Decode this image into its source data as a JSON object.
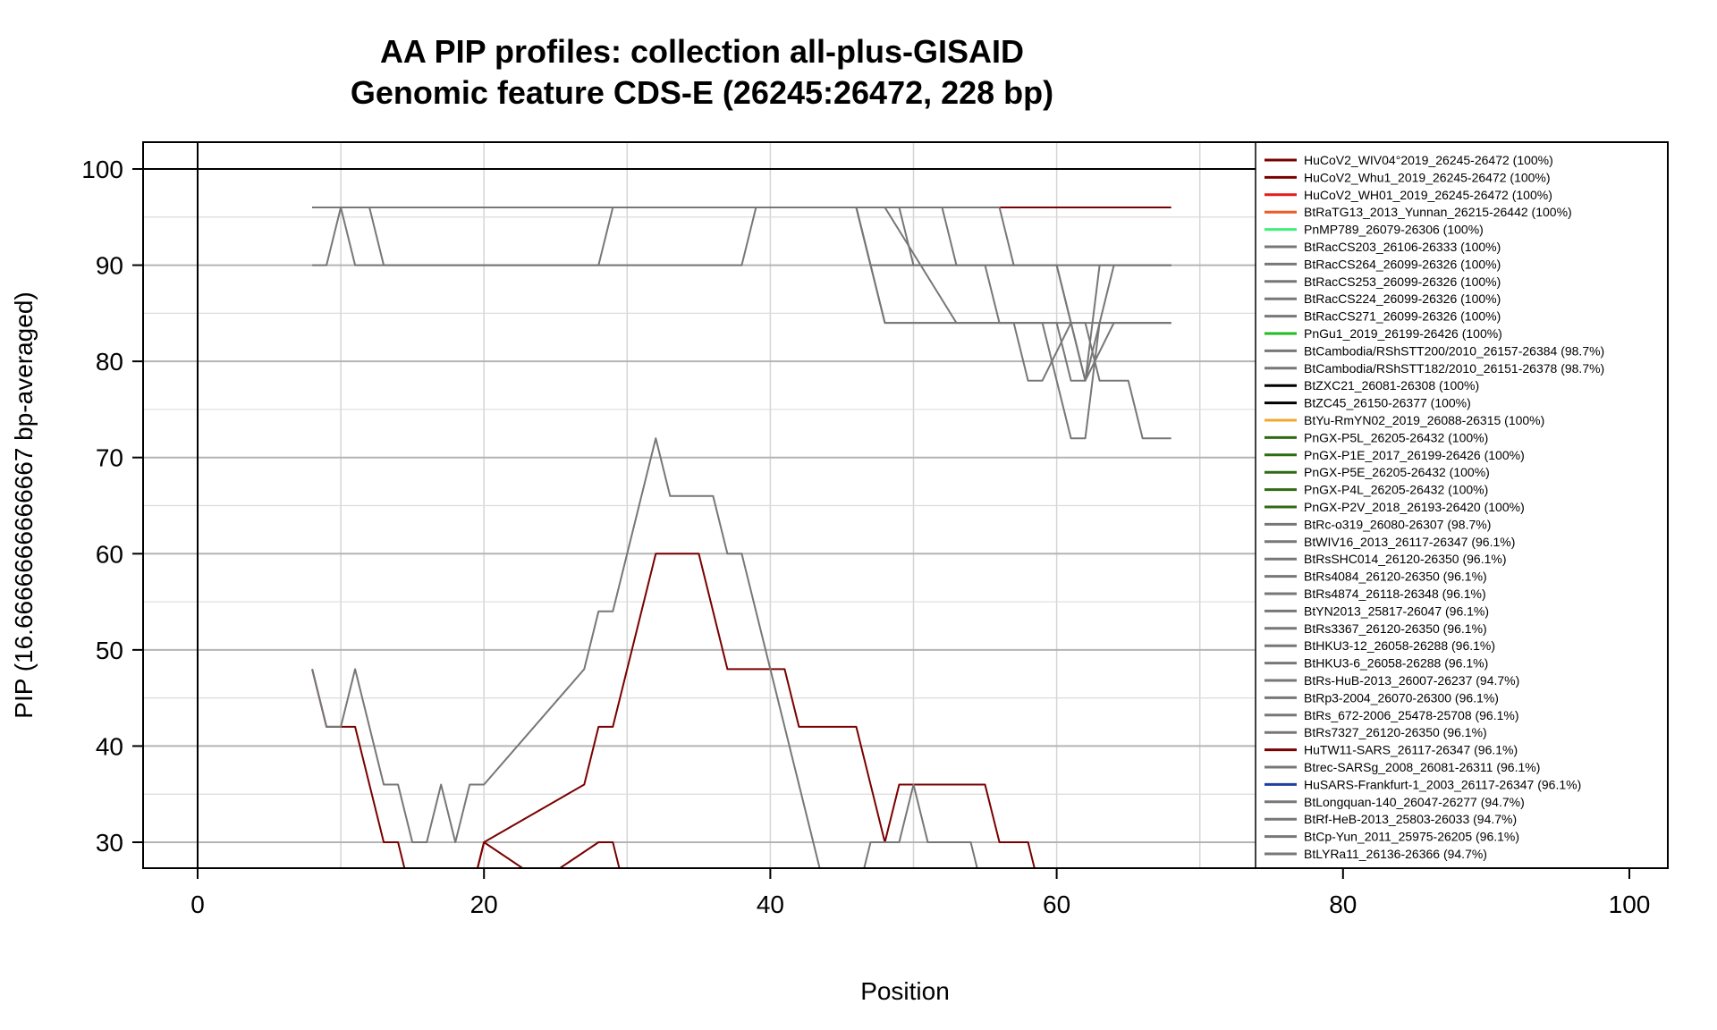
{
  "chart_data": {
    "type": "line",
    "title": "AA PIP profiles: collection all-plus-GISAID",
    "subtitle": "Genomic feature CDS-E (26245:26472, 228 bp)",
    "xlabel": "Position",
    "ylabel": "PIP (16.6666666666667 bp-averaged)",
    "xlim": [
      -4,
      103
    ],
    "ylim": [
      27.3,
      103
    ],
    "x_ticks": [
      "0",
      "20",
      "40",
      "60",
      "80",
      "100"
    ],
    "y_ticks": [
      "30",
      "40",
      "50",
      "60",
      "70",
      "80",
      "90",
      "100"
    ],
    "grid": true,
    "reference_line_y": 100,
    "legend_position": "right",
    "legend": [
      {
        "label": "HuCoV2_WIV04°2019_26245-26472 (100%)",
        "color": "#7a0000"
      },
      {
        "label": "HuCoV2_Whu1_2019_26245-26472 (100%)",
        "color": "#7a0000"
      },
      {
        "label": "HuCoV2_WH01_2019_26245-26472 (100%)",
        "color": "#e41a1c"
      },
      {
        "label": "BtRaTG13_2013_Yunnan_26215-26442 (100%)",
        "color": "#f05a22"
      },
      {
        "label": "PnMP789_26079-26306 (100%)",
        "color": "#3ef07a"
      },
      {
        "label": "BtRacCS203_26106-26333 (100%)",
        "color": "#777777"
      },
      {
        "label": "BtRacCS264_26099-26326 (100%)",
        "color": "#777777"
      },
      {
        "label": "BtRacCS253_26099-26326 (100%)",
        "color": "#777777"
      },
      {
        "label": "BtRacCS224_26099-26326 (100%)",
        "color": "#777777"
      },
      {
        "label": "BtRacCS271_26099-26326 (100%)",
        "color": "#777777"
      },
      {
        "label": "PnGu1_2019_26199-26426 (100%)",
        "color": "#22bb22"
      },
      {
        "label": "BtCambodia/RShSTT200/2010_26157-26384 (98.7%)",
        "color": "#777777"
      },
      {
        "label": "BtCambodia/RShSTT182/2010_26151-26378 (98.7%)",
        "color": "#777777"
      },
      {
        "label": "BtZXC21_26081-26308 (100%)",
        "color": "#000000"
      },
      {
        "label": "BtZC45_26150-26377 (100%)",
        "color": "#000000"
      },
      {
        "label": "BtYu-RmYN02_2019_26088-26315 (100%)",
        "color": "#f0a830"
      },
      {
        "label": "PnGX-P5L_26205-26432 (100%)",
        "color": "#2e6b12"
      },
      {
        "label": "PnGX-P1E_2017_26199-26426 (100%)",
        "color": "#2e6b12"
      },
      {
        "label": "PnGX-P5E_26205-26432 (100%)",
        "color": "#2e6b12"
      },
      {
        "label": "PnGX-P4L_26205-26432 (100%)",
        "color": "#2e6b12"
      },
      {
        "label": "PnGX-P2V_2018_26193-26420 (100%)",
        "color": "#2e6b12"
      },
      {
        "label": "BtRc-o319_26080-26307 (98.7%)",
        "color": "#777777"
      },
      {
        "label": "BtWIV16_2013_26117-26347 (96.1%)",
        "color": "#777777"
      },
      {
        "label": "BtRsSHC014_26120-26350 (96.1%)",
        "color": "#777777"
      },
      {
        "label": "BtRs4084_26120-26350 (96.1%)",
        "color": "#777777"
      },
      {
        "label": "BtRs4874_26118-26348 (96.1%)",
        "color": "#777777"
      },
      {
        "label": "BtYN2013_25817-26047 (96.1%)",
        "color": "#777777"
      },
      {
        "label": "BtRs3367_26120-26350 (96.1%)",
        "color": "#777777"
      },
      {
        "label": "BtHKU3-12_26058-26288 (96.1%)",
        "color": "#777777"
      },
      {
        "label": "BtHKU3-6_26058-26288 (96.1%)",
        "color": "#777777"
      },
      {
        "label": "BtRs-HuB-2013_26007-26237 (94.7%)",
        "color": "#777777"
      },
      {
        "label": "BtRp3-2004_26070-26300 (96.1%)",
        "color": "#777777"
      },
      {
        "label": "BtRs_672-2006_25478-25708 (96.1%)",
        "color": "#777777"
      },
      {
        "label": "BtRs7327_26120-26350 (96.1%)",
        "color": "#777777"
      },
      {
        "label": "HuTW11-SARS_26117-26347 (96.1%)",
        "color": "#7a0000"
      },
      {
        "label": "Btrec-SARSg_2008_26081-26311 (96.1%)",
        "color": "#777777"
      },
      {
        "label": "HuSARS-Frankfurt-1_2003_26117-26347 (96.1%)",
        "color": "#1f3fa0"
      },
      {
        "label": "BtLongquan-140_26047-26277 (94.7%)",
        "color": "#777777"
      },
      {
        "label": "BtRf-HeB-2013_25803-26033 (94.7%)",
        "color": "#777777"
      },
      {
        "label": "BtCp-Yun_2011_25975-26205 (96.1%)",
        "color": "#777777"
      },
      {
        "label": "BtLYRa11_26136-26366 (94.7%)",
        "color": "#777777"
      }
    ],
    "series": [
      {
        "color": "#7a0000",
        "x": [
          8,
          68
        ],
        "y": [
          96,
          96
        ]
      },
      {
        "color": "#777777",
        "x": [
          8,
          9,
          10,
          12,
          13,
          28,
          29,
          46,
          47,
          68
        ],
        "y": [
          90,
          90,
          96,
          96,
          90,
          90,
          96,
          96,
          90,
          90
        ]
      },
      {
        "color": "#777777",
        "x": [
          8,
          10,
          11,
          38,
          39,
          46,
          48,
          59,
          61,
          62,
          63,
          68
        ],
        "y": [
          96,
          96,
          90,
          90,
          96,
          96,
          84,
          84,
          72,
          72,
          84,
          84
        ]
      },
      {
        "color": "#777777",
        "x": [
          8,
          49,
          50,
          55,
          56,
          60,
          61,
          62,
          63,
          64,
          68
        ],
        "y": [
          96,
          96,
          90,
          90,
          84,
          84,
          78,
          78,
          90,
          90,
          90
        ]
      },
      {
        "color": "#777777",
        "x": [
          8,
          52,
          53,
          60,
          62,
          64,
          65,
          68
        ],
        "y": [
          96,
          96,
          90,
          90,
          78,
          90,
          90,
          90
        ]
      },
      {
        "color": "#777777",
        "x": [
          8,
          46,
          48,
          57,
          58,
          59,
          61,
          63,
          64,
          68
        ],
        "y": [
          96,
          96,
          84,
          84,
          78,
          78,
          84,
          84,
          84,
          84
        ]
      },
      {
        "color": "#777777",
        "x": [
          8,
          56,
          57,
          60,
          61,
          62,
          64,
          65,
          68
        ],
        "y": [
          96,
          96,
          90,
          90,
          84,
          78,
          84,
          84,
          84
        ]
      },
      {
        "color": "#777777",
        "x": [
          8,
          48,
          53,
          54,
          62,
          63,
          64,
          65,
          66,
          68
        ],
        "y": [
          96,
          96,
          84,
          84,
          84,
          78,
          78,
          78,
          72,
          72
        ]
      },
      {
        "color": "#7a0000",
        "x": [
          8,
          9,
          11,
          13,
          14,
          15,
          19,
          20,
          27,
          28,
          29,
          32,
          35,
          37,
          41,
          42,
          46,
          48,
          49,
          50,
          51,
          55,
          56,
          58,
          59,
          68
        ],
        "y": [
          48,
          42,
          42,
          30,
          30,
          24,
          24,
          30,
          36,
          42,
          42,
          60,
          60,
          48,
          48,
          42,
          42,
          30,
          36,
          36,
          36,
          36,
          30,
          30,
          24,
          24
        ]
      },
      {
        "color": "#7a0000",
        "x": [
          19,
          20,
          24,
          28,
          29,
          30
        ],
        "y": [
          24,
          30,
          26,
          30,
          30,
          24
        ]
      },
      {
        "color": "#777777",
        "x": [
          8,
          9,
          10,
          11,
          13,
          14,
          15,
          16,
          17,
          18,
          19,
          20,
          27,
          28,
          29,
          32,
          33,
          36,
          37,
          38,
          43,
          44
        ],
        "y": [
          48,
          42,
          42,
          48,
          36,
          36,
          30,
          30,
          36,
          30,
          36,
          36,
          48,
          54,
          54,
          72,
          66,
          66,
          60,
          60,
          30,
          24
        ]
      },
      {
        "color": "#777777",
        "x": [
          46,
          47,
          48,
          49,
          50,
          51,
          52,
          54,
          55,
          56
        ],
        "y": [
          24,
          30,
          30,
          30,
          36,
          30,
          30,
          30,
          24,
          24
        ]
      }
    ]
  }
}
